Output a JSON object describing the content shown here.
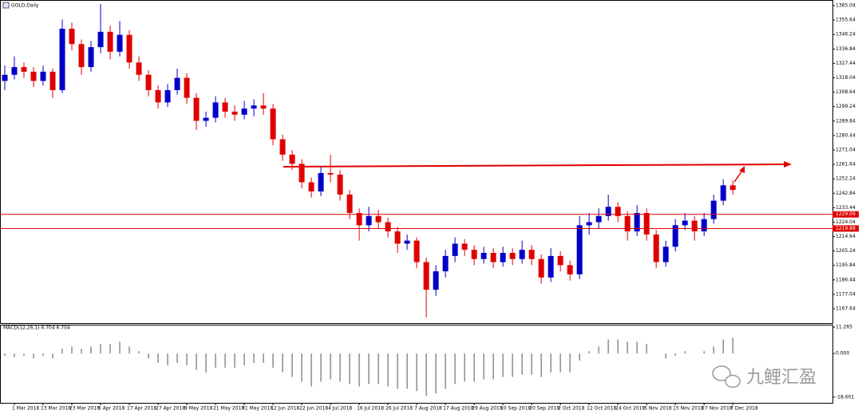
{
  "chart_data": [
    {
      "type": "candlestick",
      "title": "GOLD,Daily",
      "up_color": "#0000c8",
      "down_color": "#e00000",
      "ohlc": [
        [
          1316,
          1326,
          1310,
          1320
        ],
        [
          1320,
          1332,
          1317,
          1325
        ],
        [
          1325,
          1328,
          1318,
          1322
        ],
        [
          1322,
          1325,
          1312,
          1316
        ],
        [
          1316,
          1326,
          1313,
          1322
        ],
        [
          1322,
          1324,
          1305,
          1310
        ],
        [
          1310,
          1356,
          1308,
          1350
        ],
        [
          1350,
          1354,
          1336,
          1340
        ],
        [
          1340,
          1343,
          1320,
          1325
        ],
        [
          1325,
          1342,
          1322,
          1338
        ],
        [
          1338,
          1366,
          1334,
          1348
        ],
        [
          1348,
          1352,
          1330,
          1335
        ],
        [
          1335,
          1355,
          1332,
          1346
        ],
        [
          1346,
          1349,
          1324,
          1328
        ],
        [
          1328,
          1332,
          1316,
          1320
        ],
        [
          1320,
          1323,
          1306,
          1310
        ],
        [
          1310,
          1313,
          1298,
          1302
        ],
        [
          1302,
          1314,
          1299,
          1310
        ],
        [
          1310,
          1324,
          1307,
          1318
        ],
        [
          1318,
          1321,
          1301,
          1305
        ],
        [
          1305,
          1308,
          1284,
          1290
        ],
        [
          1290,
          1296,
          1286,
          1292
        ],
        [
          1292,
          1306,
          1289,
          1302
        ],
        [
          1302,
          1305,
          1292,
          1296
        ],
        [
          1296,
          1300,
          1290,
          1294
        ],
        [
          1294,
          1303,
          1291,
          1298
        ],
        [
          1298,
          1304,
          1293,
          1300
        ],
        [
          1300,
          1308,
          1294,
          1298
        ],
        [
          1298,
          1301,
          1274,
          1278
        ],
        [
          1278,
          1281,
          1264,
          1268
        ],
        [
          1268,
          1271,
          1258,
          1262
        ],
        [
          1262,
          1265,
          1246,
          1250
        ],
        [
          1250,
          1253,
          1240,
          1244
        ],
        [
          1244,
          1260,
          1241,
          1256
        ],
        [
          1256,
          1268,
          1250,
          1255
        ],
        [
          1255,
          1258,
          1238,
          1242
        ],
        [
          1242,
          1245,
          1226,
          1230
        ],
        [
          1230,
          1233,
          1212,
          1222
        ],
        [
          1222,
          1234,
          1218,
          1228
        ],
        [
          1228,
          1232,
          1220,
          1224
        ],
        [
          1224,
          1227,
          1214,
          1218
        ],
        [
          1218,
          1221,
          1204,
          1210
        ],
        [
          1210,
          1216,
          1206,
          1212
        ],
        [
          1212,
          1214,
          1194,
          1198
        ],
        [
          1198,
          1201,
          1162,
          1180
        ],
        [
          1180,
          1196,
          1176,
          1192
        ],
        [
          1192,
          1206,
          1188,
          1202
        ],
        [
          1202,
          1214,
          1198,
          1210
        ],
        [
          1210,
          1213,
          1202,
          1206
        ],
        [
          1206,
          1209,
          1196,
          1200
        ],
        [
          1200,
          1208,
          1197,
          1204
        ],
        [
          1204,
          1207,
          1194,
          1198
        ],
        [
          1198,
          1208,
          1195,
          1204
        ],
        [
          1204,
          1207,
          1196,
          1200
        ],
        [
          1200,
          1212,
          1197,
          1206
        ],
        [
          1206,
          1209,
          1196,
          1200
        ],
        [
          1200,
          1203,
          1184,
          1188
        ],
        [
          1188,
          1207,
          1185,
          1202
        ],
        [
          1202,
          1205,
          1192,
          1196
        ],
        [
          1196,
          1199,
          1186,
          1190
        ],
        [
          1190,
          1228,
          1187,
          1222
        ],
        [
          1222,
          1230,
          1216,
          1224
        ],
        [
          1224,
          1233,
          1220,
          1228
        ],
        [
          1228,
          1242,
          1225,
          1234
        ],
        [
          1234,
          1237,
          1224,
          1228
        ],
        [
          1228,
          1231,
          1212,
          1218
        ],
        [
          1218,
          1235,
          1215,
          1230
        ],
        [
          1230,
          1233,
          1212,
          1216
        ],
        [
          1216,
          1219,
          1194,
          1198
        ],
        [
          1198,
          1212,
          1195,
          1208
        ],
        [
          1208,
          1226,
          1205,
          1222
        ],
        [
          1222,
          1230,
          1219,
          1225
        ],
        [
          1225,
          1228,
          1212,
          1218
        ],
        [
          1218,
          1230,
          1215,
          1226
        ],
        [
          1226,
          1242,
          1223,
          1238
        ],
        [
          1238,
          1252,
          1235,
          1248
        ],
        [
          1248,
          1251,
          1242,
          1245
        ]
      ],
      "xlim": [
        -0.5,
        86.4
      ],
      "xticks": [
        {
          "value": 1,
          "label": "1 Mar 2018"
        },
        {
          "value": 4,
          "label": "13 Mar 2018"
        },
        {
          "value": 7,
          "label": "23 Mar 2018"
        },
        {
          "value": 10,
          "label": "5 Apr 2018"
        },
        {
          "value": 13,
          "label": "17 Apr 2018"
        },
        {
          "value": 16,
          "label": "27 Apr 2018"
        },
        {
          "value": 19,
          "label": "9 May 2018"
        },
        {
          "value": 22,
          "label": "21 May 2018"
        },
        {
          "value": 25,
          "label": "31 May 2018"
        },
        {
          "value": 28,
          "label": "12 Jun 2018"
        },
        {
          "value": 31,
          "label": "22 Jun 2018"
        },
        {
          "value": 34,
          "label": "4 Jul 2018"
        },
        {
          "value": 37,
          "label": "16 Jul 2018"
        },
        {
          "value": 40,
          "label": "26 Jul 2018"
        },
        {
          "value": 43,
          "label": "7 Aug 2018"
        },
        {
          "value": 46,
          "label": "17 Aug 2018"
        },
        {
          "value": 49,
          "label": "29 Aug 2018"
        },
        {
          "value": 52,
          "label": "10 Sep 2018"
        },
        {
          "value": 55,
          "label": "20 Sep 2018"
        },
        {
          "value": 58,
          "label": "2 Oct 2018"
        },
        {
          "value": 61,
          "label": "12 Oct 2018"
        },
        {
          "value": 64,
          "label": "24 Oct 2018"
        },
        {
          "value": 67,
          "label": "5 Nov 2018"
        },
        {
          "value": 70,
          "label": "15 Nov 2018"
        },
        {
          "value": 73,
          "label": "27 Nov 2018"
        },
        {
          "value": 76,
          "label": "7 Dec 2018"
        }
      ],
      "ylim": [
        1158.3,
        1368.7
      ],
      "yticks": [
        1365.04,
        1355.64,
        1346.24,
        1336.84,
        1327.44,
        1318.04,
        1308.64,
        1299.24,
        1289.84,
        1280.44,
        1271.04,
        1261.64,
        1252.24,
        1242.84,
        1233.44,
        1224.04,
        1214.64,
        1205.24,
        1195.84,
        1186.44,
        1177.04,
        1167.64
      ],
      "hlines": [
        1229.09,
        1219.88
      ],
      "hline_color": "#e00000"
    },
    {
      "type": "bar",
      "title": "MACD(12,26,1) 6.704 6.704",
      "color": "#8c8c8c",
      "values": [
        -1,
        -1.5,
        -1,
        -2,
        -1,
        -2,
        2,
        3,
        2,
        3,
        4,
        4,
        5,
        3,
        1,
        -2,
        -4,
        -5,
        -4,
        -5,
        -7,
        -8,
        -6,
        -6,
        -6,
        -5,
        -4,
        -4,
        -6,
        -8,
        -10,
        -12,
        -14,
        -12,
        -11,
        -12,
        -13,
        -14,
        -13,
        -13,
        -14,
        -15,
        -15,
        -16,
        -18,
        -17,
        -15,
        -13,
        -12,
        -12,
        -11,
        -11,
        -10,
        -10,
        -9,
        -9,
        -10,
        -8,
        -8,
        -8,
        -3,
        1,
        3,
        6,
        6,
        5,
        5,
        4,
        0,
        -2,
        -1,
        1,
        0,
        1,
        3,
        6,
        6.704
      ],
      "ylim": [
        -21,
        12.3
      ],
      "yticks": [
        11.265,
        {
          "value": 0,
          "label": "0.000"
        },
        -18.601
      ]
    }
  ],
  "watermark": "九鲤汇盈"
}
